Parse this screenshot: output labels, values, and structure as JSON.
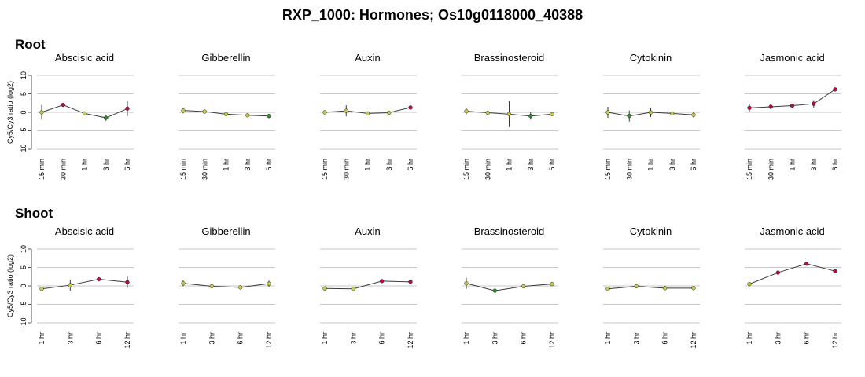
{
  "title": "RXP_1000: Hormones; Os10g0118000_40388",
  "colors": {
    "grid": "#c8c8c8",
    "line": "#3a3a3a",
    "axis": "#555555",
    "point_up": "#b0103a",
    "point_down": "#2f8f2f",
    "point_neutral": "#c9c94a"
  },
  "sections": [
    {
      "label": "Root",
      "ylabel": "Cy5/Cy3 ratio (log2)",
      "ytick_labels": [
        "10",
        "5",
        "0",
        "-5",
        "-10"
      ],
      "x_labels": [
        "15 min",
        "30 min",
        "1 hr",
        "3 hr",
        "6 hr"
      ]
    },
    {
      "label": "Shoot",
      "ylabel": "Cy5/Cy3 ratio (log2)",
      "ytick_labels": [
        "10",
        "5",
        "0",
        "-5",
        "-10"
      ],
      "x_labels": [
        "1 hr",
        "3 hr",
        "6 hr",
        "12 hr"
      ]
    }
  ],
  "chart_data": [
    {
      "type": "line",
      "section": "Root",
      "title": "Abscisic acid",
      "x": [
        "15 min",
        "30 min",
        "1 hr",
        "3 hr",
        "6 hr"
      ],
      "values": [
        0.0,
        2.0,
        -0.3,
        -1.5,
        1.0
      ],
      "error": [
        2.0,
        0.5,
        0.5,
        0.8,
        2.0
      ],
      "ylim": [
        -10,
        10
      ]
    },
    {
      "type": "line",
      "section": "Root",
      "title": "Gibberellin",
      "x": [
        "15 min",
        "30 min",
        "1 hr",
        "3 hr",
        "6 hr"
      ],
      "values": [
        0.5,
        0.2,
        -0.5,
        -0.8,
        -1.0
      ],
      "error": [
        0.8,
        0.5,
        0.4,
        0.4,
        0.5
      ],
      "ylim": [
        -10,
        10
      ]
    },
    {
      "type": "line",
      "section": "Root",
      "title": "Auxin",
      "x": [
        "15 min",
        "30 min",
        "1 hr",
        "3 hr",
        "6 hr"
      ],
      "values": [
        0.0,
        0.4,
        -0.3,
        -0.1,
        1.3
      ],
      "error": [
        0.5,
        1.5,
        0.5,
        0.4,
        0.5
      ],
      "ylim": [
        -10,
        10
      ]
    },
    {
      "type": "line",
      "section": "Root",
      "title": "Brassinosteroid",
      "x": [
        "15 min",
        "30 min",
        "1 hr",
        "3 hr",
        "6 hr"
      ],
      "values": [
        0.3,
        -0.1,
        -0.5,
        -1.0,
        -0.5
      ],
      "error": [
        0.8,
        0.4,
        3.5,
        1.0,
        0.5
      ],
      "ylim": [
        -10,
        10
      ]
    },
    {
      "type": "line",
      "section": "Root",
      "title": "Cytokinin",
      "x": [
        "15 min",
        "30 min",
        "1 hr",
        "3 hr",
        "6 hr"
      ],
      "values": [
        0.0,
        -1.0,
        0.0,
        -0.3,
        -0.7
      ],
      "error": [
        1.5,
        1.5,
        1.3,
        0.5,
        0.7
      ],
      "ylim": [
        -10,
        10
      ]
    },
    {
      "type": "line",
      "section": "Root",
      "title": "Jasmonic acid",
      "x": [
        "15 min",
        "30 min",
        "1 hr",
        "3 hr",
        "6 hr"
      ],
      "values": [
        1.2,
        1.5,
        1.8,
        2.3,
        6.2
      ],
      "error": [
        1.0,
        0.6,
        0.5,
        1.0,
        0.5
      ],
      "ylim": [
        -10,
        10
      ]
    },
    {
      "type": "line",
      "section": "Shoot",
      "title": "Abscisic acid",
      "x": [
        "1 hr",
        "3 hr",
        "6 hr",
        "12 hr"
      ],
      "values": [
        -0.8,
        0.2,
        1.8,
        1.0
      ],
      "error": [
        0.5,
        1.5,
        0.4,
        1.5
      ],
      "ylim": [
        -10,
        10
      ]
    },
    {
      "type": "line",
      "section": "Shoot",
      "title": "Gibberellin",
      "x": [
        "1 hr",
        "3 hr",
        "6 hr",
        "12 hr"
      ],
      "values": [
        0.7,
        -0.1,
        -0.4,
        0.6
      ],
      "error": [
        0.8,
        0.4,
        0.4,
        0.8
      ],
      "ylim": [
        -10,
        10
      ]
    },
    {
      "type": "line",
      "section": "Shoot",
      "title": "Auxin",
      "x": [
        "1 hr",
        "3 hr",
        "6 hr",
        "12 hr"
      ],
      "values": [
        -0.7,
        -0.8,
        1.3,
        1.1
      ],
      "error": [
        0.5,
        0.5,
        0.4,
        0.5
      ],
      "ylim": [
        -10,
        10
      ]
    },
    {
      "type": "line",
      "section": "Shoot",
      "title": "Brassinosteroid",
      "x": [
        "1 hr",
        "3 hr",
        "6 hr",
        "12 hr"
      ],
      "values": [
        0.7,
        -1.3,
        -0.1,
        0.5
      ],
      "error": [
        1.5,
        0.4,
        0.4,
        0.4
      ],
      "ylim": [
        -10,
        10
      ]
    },
    {
      "type": "line",
      "section": "Shoot",
      "title": "Cytokinin",
      "x": [
        "1 hr",
        "3 hr",
        "6 hr",
        "12 hr"
      ],
      "values": [
        -0.8,
        -0.1,
        -0.6,
        -0.6
      ],
      "error": [
        0.5,
        0.4,
        0.4,
        0.5
      ],
      "ylim": [
        -10,
        10
      ]
    },
    {
      "type": "line",
      "section": "Shoot",
      "title": "Jasmonic acid",
      "x": [
        "1 hr",
        "3 hr",
        "6 hr",
        "12 hr"
      ],
      "values": [
        0.5,
        3.6,
        6.0,
        4.0
      ],
      "error": [
        0.4,
        0.5,
        0.4,
        0.5
      ],
      "ylim": [
        -10,
        10
      ]
    }
  ]
}
